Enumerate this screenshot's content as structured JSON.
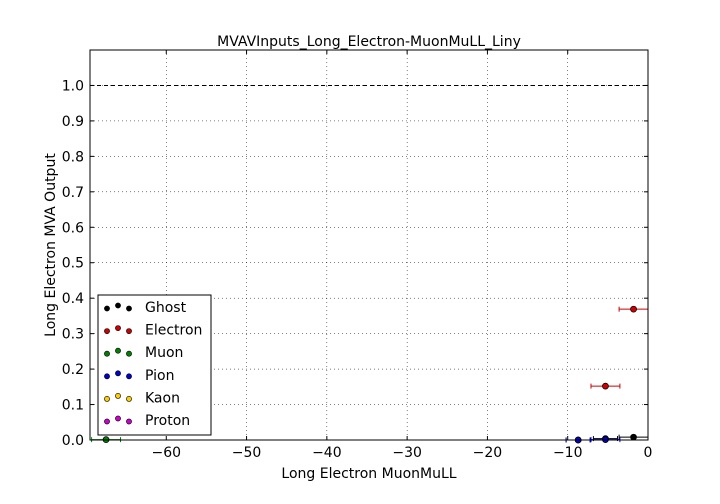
{
  "chart_data": {
    "type": "scatter",
    "title": "MVAVInputs_Long_Electron-MuonMuLL_Liny",
    "xlabel": "Long Electron MuonMuLL",
    "ylabel": "Long Electron MVA Output",
    "xlim": [
      -69.5,
      0
    ],
    "ylim": [
      0,
      1.1
    ],
    "xticks": [
      -60,
      -50,
      -40,
      -30,
      -20,
      -10,
      0
    ],
    "xtick_labels": [
      "−60",
      "−50",
      "−40",
      "−30",
      "−20",
      "−10",
      "0"
    ],
    "yticks": [
      0.0,
      0.1,
      0.2,
      0.3,
      0.4,
      0.5,
      0.6,
      0.7,
      0.8,
      0.9,
      1.0
    ],
    "ytick_labels": [
      "0.0",
      "0.1",
      "0.2",
      "0.3",
      "0.4",
      "0.5",
      "0.6",
      "0.7",
      "0.8",
      "0.9",
      "1.0"
    ],
    "grid": true,
    "reference_line": {
      "y": 1.0,
      "style": "dashed"
    },
    "legend": {
      "position": "lower-left"
    },
    "series": [
      {
        "name": "Ghost",
        "color": "#000000",
        "points": [
          {
            "x": -8.7,
            "y": 0.0,
            "xerr": 1.5
          },
          {
            "x": -5.3,
            "y": 0.004,
            "xerr": 1.5
          },
          {
            "x": -1.8,
            "y": 0.008,
            "xerr": 1.8
          }
        ]
      },
      {
        "name": "Electron",
        "color": "#cc0000",
        "points": [
          {
            "x": -5.3,
            "y": 0.152,
            "xerr": 1.8
          },
          {
            "x": -1.8,
            "y": 0.369,
            "xerr": 1.8
          }
        ]
      },
      {
        "name": "Muon",
        "color": "#008000",
        "points": [
          {
            "x": -67.5,
            "y": 0.001,
            "xerr": 1.8
          }
        ]
      },
      {
        "name": "Pion",
        "color": "#0000cc",
        "points": [
          {
            "x": -8.7,
            "y": 0.0,
            "xerr": 1.5
          },
          {
            "x": -5.3,
            "y": 0.001,
            "xerr": 1.8
          }
        ]
      },
      {
        "name": "Kaon",
        "color": "#ffcc00",
        "points": []
      },
      {
        "name": "Proton",
        "color": "#cc00cc",
        "points": []
      }
    ]
  }
}
